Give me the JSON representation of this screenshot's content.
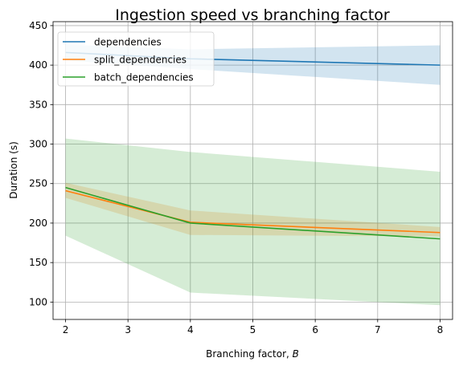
{
  "chart_data": {
    "type": "line",
    "title": "Ingestion speed vs branching factor",
    "xlabel_prefix": "Branching factor, ",
    "xlabel_var": "B",
    "ylabel": "Duration (s)",
    "xlim": [
      1.8,
      8.2
    ],
    "ylim": [
      78,
      455
    ],
    "xticks": [
      2,
      3,
      4,
      5,
      6,
      7,
      8
    ],
    "yticks": [
      100,
      150,
      200,
      250,
      300,
      350,
      400,
      450
    ],
    "grid": true,
    "legend_position": "top-left",
    "x": [
      2,
      4,
      8
    ],
    "series": [
      {
        "name": "dependencies",
        "color": "#1f77b4",
        "values": [
          416,
          408,
          400
        ],
        "lower": [
          406,
          395,
          375
        ],
        "upper": [
          426,
          420,
          425
        ]
      },
      {
        "name": "split_dependencies",
        "color": "#ff7f0e",
        "values": [
          241,
          201,
          188
        ],
        "lower": [
          232,
          185,
          183
        ],
        "upper": [
          251,
          216,
          195
        ]
      },
      {
        "name": "batch_dependencies",
        "color": "#2ca02c",
        "values": [
          245,
          200,
          180
        ],
        "lower": [
          184,
          112,
          96
        ],
        "upper": [
          307,
          290,
          265
        ]
      }
    ]
  }
}
